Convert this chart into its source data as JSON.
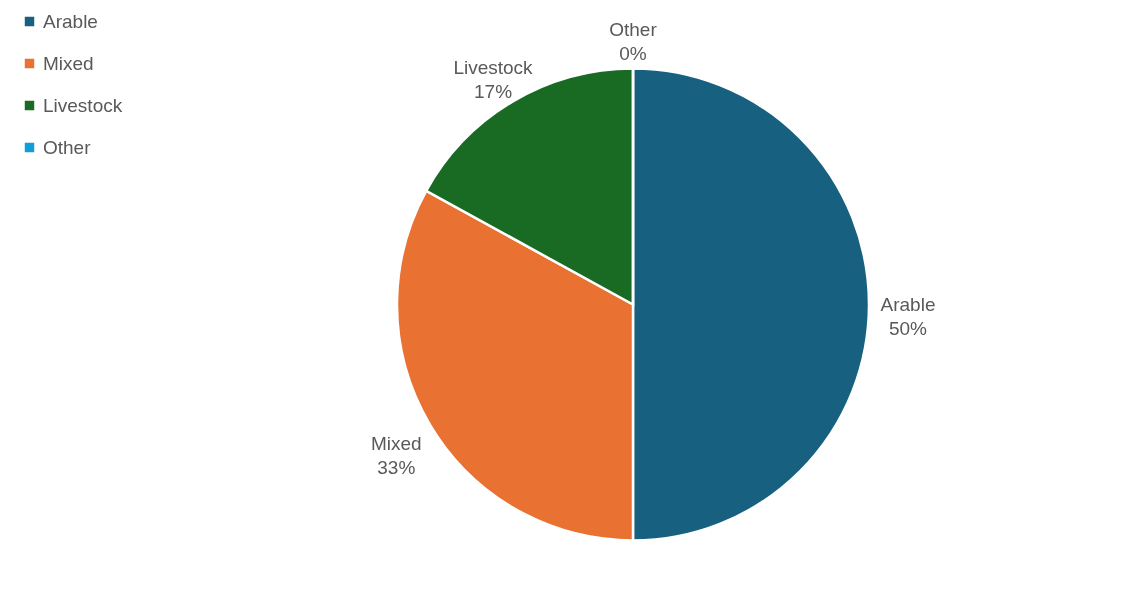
{
  "chart_data": {
    "type": "pie",
    "categories": [
      "Arable",
      "Mixed",
      "Livestock",
      "Other"
    ],
    "values": [
      50,
      33,
      17,
      0
    ],
    "value_labels": [
      "50%",
      "33%",
      "17%",
      "0%"
    ],
    "colors": [
      "#17607f",
      "#e97132",
      "#196b24",
      "#0f9ed5"
    ],
    "legend": "left"
  }
}
